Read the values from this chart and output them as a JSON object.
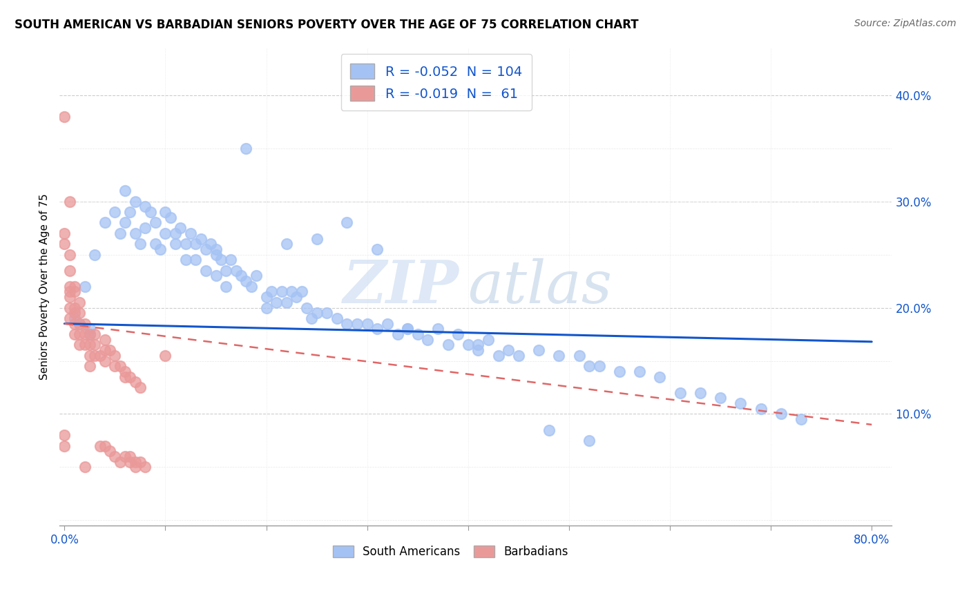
{
  "title": "SOUTH AMERICAN VS BARBADIAN SENIORS POVERTY OVER THE AGE OF 75 CORRELATION CHART",
  "source": "Source: ZipAtlas.com",
  "ylabel": "Seniors Poverty Over the Age of 75",
  "xlabel": "",
  "xlim": [
    -0.005,
    0.82
  ],
  "ylim": [
    -0.005,
    0.445
  ],
  "xticks": [
    0.0,
    0.1,
    0.2,
    0.3,
    0.4,
    0.5,
    0.6,
    0.7,
    0.8
  ],
  "xticklabels": [
    "0.0%",
    "",
    "",
    "",
    "",
    "",
    "",
    "",
    "80.0%"
  ],
  "ytick_right_labels": [
    "10.0%",
    "20.0%",
    "30.0%",
    "40.0%"
  ],
  "ytick_right_values": [
    0.1,
    0.2,
    0.3,
    0.4
  ],
  "legend_R_blue": "-0.052",
  "legend_N_blue": "104",
  "legend_R_pink": "-0.019",
  "legend_N_pink": " 61",
  "blue_color": "#a4c2f4",
  "pink_color": "#ea9999",
  "blue_line_color": "#1155cc",
  "pink_line_color": "#e06666",
  "watermark_zip": "ZIP",
  "watermark_atlas": "atlas",
  "legend_text_color": "#1155cc",
  "blue_trend_start": 0.185,
  "blue_trend_end": 0.168,
  "pink_trend_start": 0.185,
  "pink_trend_end": 0.09,
  "blue_x": [
    0.025,
    0.015,
    0.01,
    0.025,
    0.02,
    0.03,
    0.04,
    0.05,
    0.055,
    0.06,
    0.06,
    0.065,
    0.07,
    0.07,
    0.075,
    0.08,
    0.08,
    0.085,
    0.09,
    0.09,
    0.095,
    0.1,
    0.1,
    0.105,
    0.11,
    0.11,
    0.115,
    0.12,
    0.12,
    0.125,
    0.13,
    0.13,
    0.135,
    0.14,
    0.14,
    0.145,
    0.15,
    0.15,
    0.155,
    0.16,
    0.16,
    0.165,
    0.17,
    0.175,
    0.18,
    0.185,
    0.19,
    0.2,
    0.2,
    0.205,
    0.21,
    0.215,
    0.22,
    0.225,
    0.23,
    0.235,
    0.24,
    0.245,
    0.25,
    0.26,
    0.27,
    0.28,
    0.29,
    0.3,
    0.31,
    0.32,
    0.33,
    0.34,
    0.35,
    0.36,
    0.38,
    0.39,
    0.4,
    0.41,
    0.42,
    0.43,
    0.45,
    0.47,
    0.49,
    0.51,
    0.52,
    0.53,
    0.55,
    0.57,
    0.59,
    0.61,
    0.63,
    0.65,
    0.67,
    0.69,
    0.71,
    0.73,
    0.15,
    0.18,
    0.22,
    0.25,
    0.28,
    0.31,
    0.34,
    0.37,
    0.41,
    0.44,
    0.48,
    0.52
  ],
  "blue_y": [
    0.175,
    0.185,
    0.19,
    0.18,
    0.22,
    0.25,
    0.28,
    0.29,
    0.27,
    0.31,
    0.28,
    0.29,
    0.3,
    0.27,
    0.26,
    0.295,
    0.275,
    0.29,
    0.28,
    0.26,
    0.255,
    0.29,
    0.27,
    0.285,
    0.27,
    0.26,
    0.275,
    0.26,
    0.245,
    0.27,
    0.26,
    0.245,
    0.265,
    0.255,
    0.235,
    0.26,
    0.25,
    0.23,
    0.245,
    0.235,
    0.22,
    0.245,
    0.235,
    0.23,
    0.225,
    0.22,
    0.23,
    0.2,
    0.21,
    0.215,
    0.205,
    0.215,
    0.205,
    0.215,
    0.21,
    0.215,
    0.2,
    0.19,
    0.195,
    0.195,
    0.19,
    0.185,
    0.185,
    0.185,
    0.18,
    0.185,
    0.175,
    0.18,
    0.175,
    0.17,
    0.165,
    0.175,
    0.165,
    0.16,
    0.17,
    0.155,
    0.155,
    0.16,
    0.155,
    0.155,
    0.145,
    0.145,
    0.14,
    0.14,
    0.135,
    0.12,
    0.12,
    0.115,
    0.11,
    0.105,
    0.1,
    0.095,
    0.255,
    0.35,
    0.26,
    0.265,
    0.28,
    0.255,
    0.18,
    0.18,
    0.165,
    0.16,
    0.085,
    0.075
  ],
  "pink_x": [
    0.0,
    0.0,
    0.0,
    0.0,
    0.0,
    0.005,
    0.005,
    0.005,
    0.005,
    0.005,
    0.005,
    0.005,
    0.005,
    0.01,
    0.01,
    0.01,
    0.01,
    0.01,
    0.01,
    0.015,
    0.015,
    0.015,
    0.015,
    0.015,
    0.02,
    0.02,
    0.02,
    0.02,
    0.025,
    0.025,
    0.025,
    0.025,
    0.03,
    0.03,
    0.03,
    0.035,
    0.035,
    0.04,
    0.04,
    0.04,
    0.04,
    0.045,
    0.045,
    0.05,
    0.05,
    0.05,
    0.055,
    0.055,
    0.06,
    0.06,
    0.06,
    0.065,
    0.065,
    0.065,
    0.07,
    0.07,
    0.07,
    0.075,
    0.075,
    0.08,
    0.1
  ],
  "pink_y": [
    0.38,
    0.27,
    0.26,
    0.08,
    0.07,
    0.3,
    0.25,
    0.235,
    0.22,
    0.215,
    0.21,
    0.2,
    0.19,
    0.22,
    0.215,
    0.2,
    0.195,
    0.185,
    0.175,
    0.205,
    0.195,
    0.185,
    0.175,
    0.165,
    0.185,
    0.175,
    0.165,
    0.05,
    0.175,
    0.165,
    0.155,
    0.145,
    0.175,
    0.165,
    0.155,
    0.155,
    0.07,
    0.17,
    0.16,
    0.15,
    0.07,
    0.16,
    0.065,
    0.155,
    0.145,
    0.06,
    0.145,
    0.055,
    0.14,
    0.135,
    0.06,
    0.135,
    0.06,
    0.055,
    0.13,
    0.055,
    0.05,
    0.125,
    0.055,
    0.05,
    0.155
  ]
}
